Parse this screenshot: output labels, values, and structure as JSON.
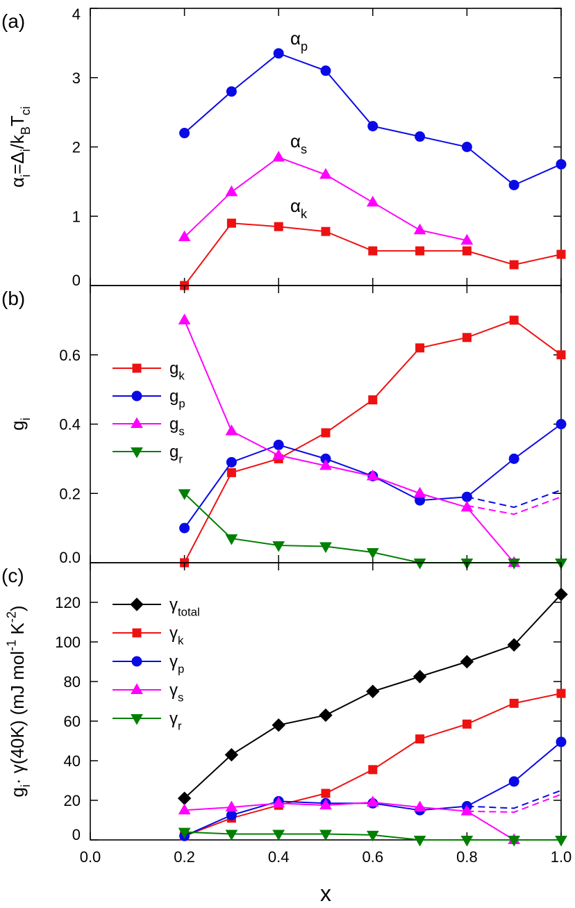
{
  "chart_data": [
    {
      "type": "line",
      "panel_label": "(a)",
      "ylabel": [
        {
          "text": "α"
        },
        {
          "sub": "i"
        },
        {
          "text": "=Δ"
        },
        {
          "sub": "i"
        },
        {
          "text": "/k"
        },
        {
          "sub": "B"
        },
        {
          "text": "T"
        },
        {
          "sub": "ci"
        }
      ],
      "x": [
        0.2,
        0.3,
        0.4,
        0.5,
        0.6,
        0.7,
        0.8,
        0.9,
        1.0
      ],
      "xlim": [
        0,
        1
      ],
      "xticks": [
        0,
        0.2,
        0.4,
        0.6,
        0.8,
        1
      ],
      "ylim": [
        0,
        4
      ],
      "yticks": [
        0,
        1,
        2,
        3,
        4
      ],
      "series": [
        {
          "color": "#0a0ae6",
          "marker": "circle",
          "values": [
            2.2,
            2.8,
            3.35,
            3.1,
            2.3,
            2.15,
            2.0,
            1.45,
            1.75
          ]
        },
        {
          "color": "#ff00ff",
          "marker": "triangle-up",
          "values": [
            0.7,
            1.35,
            1.85,
            1.6,
            1.2,
            0.8,
            0.65,
            null,
            null
          ]
        },
        {
          "color": "#ee1111",
          "marker": "square",
          "values": [
            0,
            0.9,
            0.85,
            0.78,
            0.5,
            0.5,
            0.5,
            0.3,
            0.45
          ]
        }
      ],
      "annotations": [
        [
          {
            "text": "α"
          },
          {
            "sub": "p"
          }
        ],
        [
          {
            "text": "α"
          },
          {
            "sub": "s"
          }
        ],
        [
          {
            "text": "α"
          },
          {
            "sub": "k"
          }
        ]
      ]
    },
    {
      "type": "line",
      "panel_label": "(b)",
      "ylabel": [
        {
          "text": "g"
        },
        {
          "sub": "i"
        }
      ],
      "x": [
        0.2,
        0.3,
        0.4,
        0.5,
        0.6,
        0.7,
        0.8,
        0.9,
        1.0
      ],
      "xlim": [
        0,
        1
      ],
      "xticks": [
        0,
        0.2,
        0.4,
        0.6,
        0.8,
        1
      ],
      "ylim": [
        0,
        0.8
      ],
      "yticks": [
        {
          "value": 0,
          "label": "0.0"
        },
        0.2,
        0.4,
        0.6
      ],
      "series": [
        {
          "name": [
            {
              "text": "g"
            },
            {
              "sub": "k"
            }
          ],
          "color": "#ee1111",
          "marker": "square",
          "values": [
            0,
            0.26,
            0.3,
            0.375,
            0.47,
            0.62,
            0.65,
            0.7,
            0.6
          ]
        },
        {
          "name": [
            {
              "text": "g"
            },
            {
              "sub": "p"
            }
          ],
          "color": "#0a0ae6",
          "marker": "circle",
          "values": [
            0.1,
            0.29,
            0.34,
            0.3,
            0.25,
            0.18,
            0.19,
            0.3,
            0.4
          ]
        },
        {
          "name": [
            {
              "text": "g"
            },
            {
              "sub": "s"
            }
          ],
          "color": "#ff00ff",
          "marker": "triangle-up",
          "values": [
            0.7,
            0.38,
            0.31,
            0.28,
            0.25,
            0.2,
            0.16,
            0,
            null
          ]
        },
        {
          "name": [
            {
              "text": "g"
            },
            {
              "sub": "r"
            }
          ],
          "color": "#007f00",
          "marker": "triangle-down",
          "values": [
            0.2,
            0.07,
            0.05,
            0.047,
            0.03,
            0,
            0,
            0,
            0
          ]
        },
        {
          "color": "#0a0ae6",
          "dashed": true,
          "values": [
            null,
            null,
            null,
            null,
            null,
            null,
            0.19,
            0.16,
            0.21
          ]
        },
        {
          "color": "#ff00ff",
          "dashed": true,
          "values": [
            null,
            null,
            null,
            null,
            null,
            null,
            0.165,
            0.14,
            0.19
          ]
        }
      ]
    },
    {
      "type": "line",
      "panel_label": "(c)",
      "xlabel": "x",
      "ylabel": [
        {
          "text": "g"
        },
        {
          "sub": "i"
        },
        {
          "text": "· γ(40K) (mJ mol"
        },
        {
          "sup": "-1"
        },
        {
          "text": " K"
        },
        {
          "sup": "-2"
        },
        {
          "text": ")"
        }
      ],
      "x": [
        0.2,
        0.3,
        0.4,
        0.5,
        0.6,
        0.7,
        0.8,
        0.9,
        1.0
      ],
      "xlim": [
        0,
        1
      ],
      "xticks": [
        {
          "value": 0,
          "label": "0.0"
        },
        0.2,
        0.4,
        0.6,
        0.8,
        {
          "value": 1,
          "label": "1.0"
        }
      ],
      "ylim": [
        0,
        140
      ],
      "yticks": [
        0,
        20,
        40,
        60,
        80,
        100,
        120
      ],
      "series": [
        {
          "name": [
            {
              "text": "γ"
            },
            {
              "sub": "total"
            }
          ],
          "color": "#000000",
          "marker": "diamond",
          "values": [
            21,
            43,
            58,
            63,
            75,
            82.5,
            90,
            98.5,
            124
          ]
        },
        {
          "name": [
            {
              "text": "γ"
            },
            {
              "sub": "k"
            }
          ],
          "color": "#ee1111",
          "marker": "square",
          "values": [
            2,
            11,
            17.5,
            23.5,
            35.5,
            51,
            58.5,
            69,
            74
          ]
        },
        {
          "name": [
            {
              "text": "γ"
            },
            {
              "sub": "p"
            }
          ],
          "color": "#0a0ae6",
          "marker": "circle",
          "values": [
            2,
            12.5,
            19.5,
            18.5,
            18.5,
            15,
            17,
            29.5,
            49.5
          ]
        },
        {
          "name": [
            {
              "text": "γ"
            },
            {
              "sub": "s"
            }
          ],
          "color": "#ff00ff",
          "marker": "triangle-up",
          "values": [
            15,
            16.5,
            18.5,
            17.5,
            19,
            16.5,
            14.5,
            0,
            null
          ]
        },
        {
          "name": [
            {
              "text": "γ"
            },
            {
              "sub": "r"
            }
          ],
          "color": "#007f00",
          "marker": "triangle-down",
          "values": [
            4,
            3,
            3,
            3,
            2.5,
            0,
            0,
            0,
            0
          ]
        },
        {
          "color": "#0a0ae6",
          "dashed": true,
          "values": [
            null,
            null,
            null,
            null,
            null,
            null,
            17,
            16,
            25
          ]
        },
        {
          "color": "#ff00ff",
          "dashed": true,
          "values": [
            null,
            null,
            null,
            null,
            null,
            null,
            14.5,
            14,
            23
          ]
        }
      ]
    }
  ]
}
